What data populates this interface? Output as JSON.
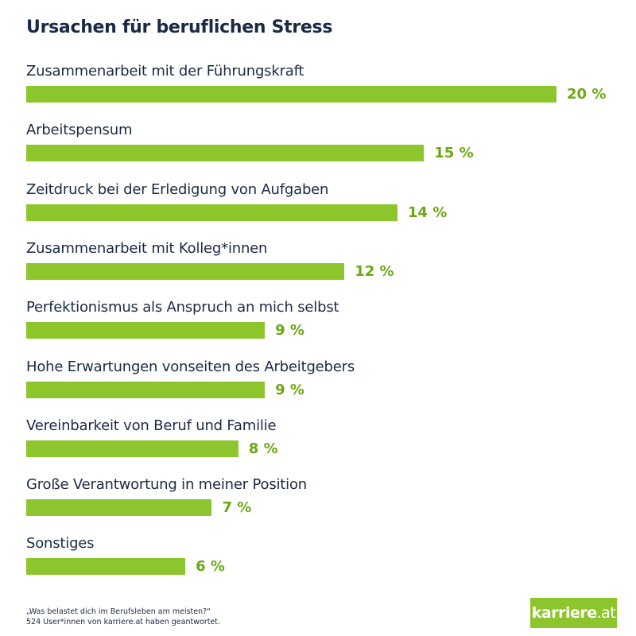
{
  "chart_data": {
    "type": "bar",
    "orientation": "horizontal",
    "title": "Ursachen für beruflichen Stress",
    "categories": [
      "Zusammenarbeit mit der Führungskraft",
      "Arbeitspensum",
      "Zeitdruck bei der Erledigung von Aufgaben",
      "Zusammenarbeit mit Kolleg*innen",
      "Perfektionismus als Anspruch an mich selbst",
      "Hohe Erwartungen vonseiten des Arbeitgebers",
      "Vereinbarkeit von Beruf und Familie",
      "Große Verantwortung in meiner Position",
      "Sonstiges"
    ],
    "values": [
      20,
      15,
      14,
      12,
      9,
      9,
      8,
      7,
      6
    ],
    "value_labels": [
      "20 %",
      "15 %",
      "14 %",
      "12 %",
      "9 %",
      "9 %",
      "8 %",
      "7 %",
      "6 %"
    ],
    "unit": "%",
    "xlim": [
      0,
      20
    ],
    "grid": false,
    "bar_color": "#8dc52d",
    "label_color": "#6aa814"
  },
  "footer": {
    "question": "„Was belastet dich im Berufsleben am meisten?“",
    "respondents": "524 User*innen von karriere.at haben geantwortet."
  },
  "logo": {
    "brand": "karriere",
    "suffix": ".at"
  }
}
